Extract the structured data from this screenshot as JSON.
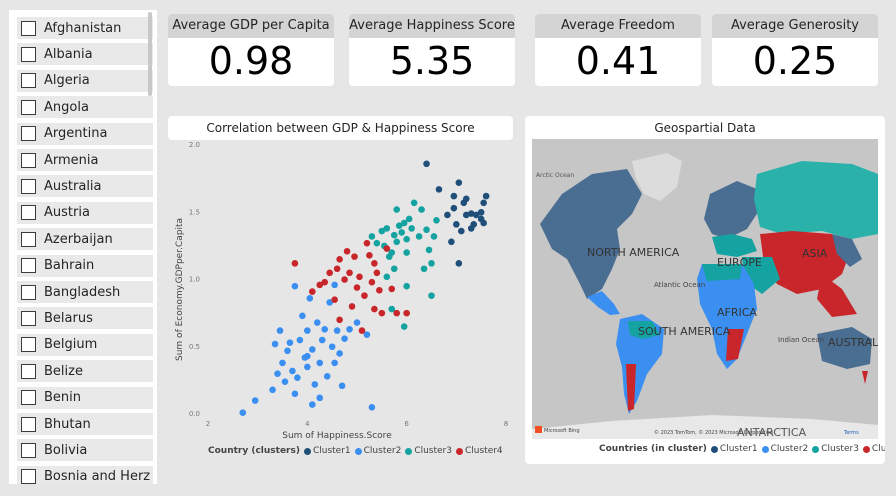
{
  "slicer": {
    "items": [
      "Afghanistan",
      "Albania",
      "Algeria",
      "Angola",
      "Argentina",
      "Armenia",
      "Australia",
      "Austria",
      "Azerbaijan",
      "Bahrain",
      "Bangladesh",
      "Belarus",
      "Belgium",
      "Belize",
      "Benin",
      "Bhutan",
      "Bolivia",
      "Bosnia and Herz"
    ]
  },
  "kpis": [
    {
      "title": "Average GDP per Capita",
      "value": "0.98"
    },
    {
      "title": "Average Happiness Score",
      "value": "5.35"
    },
    {
      "title": "Average Freedom",
      "value": "0.41"
    },
    {
      "title": "Average Generosity",
      "value": "0.25"
    }
  ],
  "scatter": {
    "title": "Correlation between GDP & Happiness Score",
    "legend_title": "Country (clusters)"
  },
  "map": {
    "title": "Geospartial Data",
    "labels": {
      "arctic": "Arctic Ocean",
      "north_america": "NORTH AMERICA",
      "europe": "EUROPE",
      "asia": "ASIA",
      "atlantic": "Atlantic Ocean",
      "africa": "AFRICA",
      "south_america": "SOUTH AMERICA",
      "indian": "Indian Ocean",
      "australia": "AUSTRAL",
      "antarctica": "ANTARCTICA"
    },
    "attribution": "© 2023 TomTom, © 2023 Microsoft Corporation",
    "terms": "Terms",
    "bing": "Microsoft Bing",
    "legend_title": "Countries (in cluster)"
  },
  "colors": {
    "Cluster1": "#1f4e79",
    "Cluster2": "#3a8ff0",
    "Cluster3": "#14a3a0",
    "Cluster4": "#c8262a"
  },
  "chart_data": {
    "type": "scatter",
    "title": "Correlation between GDP & Happiness Score",
    "xlabel": "Sum of Happiness.Score",
    "ylabel": "Sum of Economy.GDPper.Capita",
    "xlim": [
      2,
      8
    ],
    "ylim": [
      0,
      2
    ],
    "xticks": [
      "2",
      "4",
      "6",
      "8"
    ],
    "yticks": [
      "0.0",
      "0.5",
      "1.0",
      "1.5",
      "2.0"
    ],
    "legend_position": "bottom",
    "series": [
      {
        "name": "Cluster1",
        "points": [
          [
            6.4,
            1.86
          ],
          [
            6.65,
            1.67
          ],
          [
            6.82,
            1.48
          ],
          [
            6.95,
            1.53
          ],
          [
            7.0,
            1.41
          ],
          [
            7.05,
            1.72
          ],
          [
            7.1,
            1.36
          ],
          [
            7.15,
            1.57
          ],
          [
            7.2,
            1.6
          ],
          [
            6.95,
            1.62
          ],
          [
            7.3,
            1.49
          ],
          [
            7.35,
            1.41
          ],
          [
            7.4,
            1.48
          ],
          [
            7.5,
            1.5
          ],
          [
            7.55,
            1.57
          ],
          [
            7.6,
            1.62
          ],
          [
            7.5,
            1.45
          ],
          [
            7.2,
            1.48
          ],
          [
            7.3,
            1.38
          ],
          [
            6.9,
            1.28
          ],
          [
            7.05,
            1.12
          ],
          [
            7.55,
            1.42
          ]
        ]
      },
      {
        "name": "Cluster2",
        "points": [
          [
            2.7,
            0.01
          ],
          [
            2.95,
            0.1
          ],
          [
            3.3,
            0.18
          ],
          [
            3.35,
            0.52
          ],
          [
            3.4,
            0.3
          ],
          [
            3.45,
            0.62
          ],
          [
            3.5,
            0.38
          ],
          [
            3.55,
            0.24
          ],
          [
            3.6,
            0.47
          ],
          [
            3.65,
            0.53
          ],
          [
            3.7,
            0.32
          ],
          [
            3.75,
            0.15
          ],
          [
            3.8,
            0.27
          ],
          [
            3.85,
            0.55
          ],
          [
            3.9,
            0.73
          ],
          [
            3.95,
            0.42
          ],
          [
            4.0,
            0.35
          ],
          [
            4.0,
            0.62
          ],
          [
            4.05,
            0.86
          ],
          [
            4.1,
            0.48
          ],
          [
            4.15,
            0.22
          ],
          [
            4.2,
            0.68
          ],
          [
            4.25,
            0.38
          ],
          [
            4.25,
            0.12
          ],
          [
            4.3,
            0.55
          ],
          [
            4.35,
            0.63
          ],
          [
            4.4,
            0.28
          ],
          [
            4.45,
            0.83
          ],
          [
            4.5,
            0.5
          ],
          [
            4.55,
            0.38
          ],
          [
            4.6,
            0.62
          ],
          [
            4.65,
            0.45
          ],
          [
            4.7,
            0.21
          ],
          [
            4.75,
            0.56
          ],
          [
            4.85,
            0.63
          ],
          [
            5.0,
            0.68
          ],
          [
            5.2,
            0.59
          ],
          [
            5.3,
            0.05
          ],
          [
            4.1,
            0.07
          ],
          [
            3.75,
            0.95
          ],
          [
            4.0,
            0.43
          ],
          [
            4.55,
            0.96
          ]
        ]
      },
      {
        "name": "Cluster3",
        "points": [
          [
            5.3,
            1.32
          ],
          [
            5.4,
            1.27
          ],
          [
            5.5,
            1.36
          ],
          [
            5.55,
            1.25
          ],
          [
            5.6,
            1.38
          ],
          [
            5.65,
            1.17
          ],
          [
            5.7,
            1.2
          ],
          [
            5.75,
            1.33
          ],
          [
            5.8,
            1.28
          ],
          [
            5.85,
            1.4
          ],
          [
            5.9,
            1.35
          ],
          [
            5.95,
            1.42
          ],
          [
            6.0,
            1.3
          ],
          [
            6.05,
            1.45
          ],
          [
            6.1,
            1.38
          ],
          [
            5.8,
            1.52
          ],
          [
            6.3,
            1.52
          ],
          [
            6.4,
            1.37
          ],
          [
            6.45,
            1.22
          ],
          [
            6.5,
            1.12
          ],
          [
            6.55,
            1.32
          ],
          [
            6.6,
            1.44
          ],
          [
            6.5,
            0.88
          ],
          [
            6.0,
            0.95
          ],
          [
            5.95,
            0.65
          ],
          [
            5.7,
            0.78
          ],
          [
            5.75,
            1.08
          ],
          [
            6.15,
            1.57
          ],
          [
            6.25,
            1.32
          ],
          [
            5.6,
            1.02
          ],
          [
            6.35,
            1.08
          ],
          [
            6.0,
            1.2
          ]
        ]
      },
      {
        "name": "Cluster4",
        "points": [
          [
            3.75,
            1.12
          ],
          [
            4.1,
            0.91
          ],
          [
            4.25,
            0.96
          ],
          [
            4.35,
            0.98
          ],
          [
            4.45,
            1.05
          ],
          [
            4.55,
            0.85
          ],
          [
            4.6,
            1.08
          ],
          [
            4.65,
            1.15
          ],
          [
            4.75,
            1.0
          ],
          [
            4.8,
            1.21
          ],
          [
            4.85,
            1.05
          ],
          [
            4.9,
            0.8
          ],
          [
            4.95,
            1.17
          ],
          [
            5.0,
            0.94
          ],
          [
            5.05,
            1.02
          ],
          [
            5.1,
            0.62
          ],
          [
            5.15,
            0.88
          ],
          [
            5.2,
            1.27
          ],
          [
            5.25,
            1.18
          ],
          [
            5.3,
            0.98
          ],
          [
            5.35,
            1.12
          ],
          [
            5.4,
            1.05
          ],
          [
            5.45,
            0.92
          ],
          [
            5.5,
            0.75
          ],
          [
            5.35,
            0.78
          ],
          [
            5.7,
            0.93
          ],
          [
            5.8,
            0.75
          ],
          [
            6.0,
            0.75
          ],
          [
            5.6,
            1.23
          ],
          [
            4.65,
            0.7
          ]
        ]
      }
    ]
  }
}
